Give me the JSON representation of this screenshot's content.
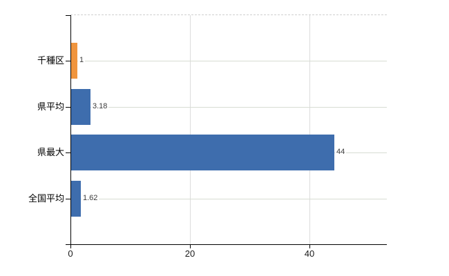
{
  "chart_data": {
    "type": "bar",
    "orientation": "horizontal",
    "title": "",
    "xlabel": "",
    "ylabel": "",
    "categories": [
      "千種区",
      "県平均",
      "県最大",
      "全国平均"
    ],
    "values": [
      1,
      3.18,
      44,
      1.62
    ],
    "value_labels": [
      "1",
      "3.18",
      "44",
      "1.62"
    ],
    "x_ticks": [
      0,
      20,
      40
    ],
    "x_tick_labels": [
      "0",
      "20",
      "40"
    ],
    "xlim": [
      0,
      53
    ],
    "grid": true,
    "legend": "none",
    "colors": {
      "bar_highlight": "#F0953E",
      "bar_default": "#3E6DAD",
      "bar_color_per_category": [
        "#F0953E",
        "#3E6DAD",
        "#3E6DAD",
        "#3E6DAD"
      ],
      "h_gridline": "#d7dcd2",
      "v_gridline": "#dcdcdc",
      "top_border_dashed": "#cfcfcf",
      "axis": "#000000",
      "background": "#ffffff"
    }
  }
}
